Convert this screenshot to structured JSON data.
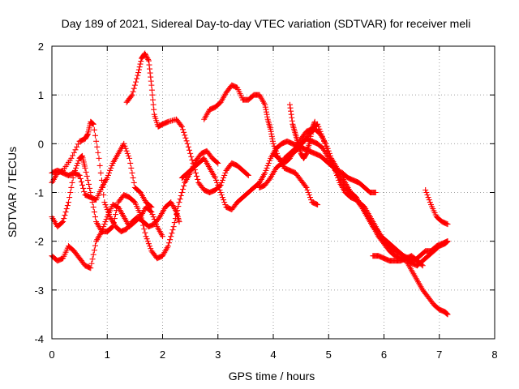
{
  "chart_data": {
    "type": "scatter",
    "title": "Day 189 of 2021, Sidereal Day-to-day VTEC variation (SDTVAR) for receiver meli",
    "xlabel": "GPS time / hours",
    "ylabel": "SDTVAR / TECUs",
    "xlim": [
      0,
      8
    ],
    "ylim": [
      -4,
      2
    ],
    "xticks": [
      "0",
      "1",
      "2",
      "3",
      "4",
      "5",
      "6",
      "7",
      "8"
    ],
    "yticks": [
      "-4",
      "-3",
      "-2",
      "-1",
      "0",
      "1",
      "2"
    ],
    "grid": true,
    "marker": "+",
    "color": "#ff0000",
    "series": [
      {
        "name": "trace-1",
        "x": [
          1.35,
          1.45,
          1.55,
          1.62,
          1.68,
          1.75,
          1.8,
          1.85,
          1.92,
          2.0,
          2.1,
          2.25,
          2.35,
          2.45,
          2.55,
          2.65,
          2.75,
          2.85,
          2.95,
          3.05,
          3.15,
          3.25,
          3.35,
          3.45,
          3.55
        ],
        "y": [
          0.85,
          1.0,
          1.4,
          1.75,
          1.85,
          1.7,
          1.2,
          0.6,
          0.35,
          0.4,
          0.45,
          0.5,
          0.35,
          0.0,
          -0.4,
          -0.8,
          -0.95,
          -1.0,
          -0.95,
          -0.85,
          -0.55,
          -0.4,
          -0.45,
          -0.55,
          -0.65
        ]
      },
      {
        "name": "trace-2",
        "x": [
          2.75,
          2.85,
          2.95,
          3.05,
          3.15,
          3.25,
          3.35,
          3.45,
          3.55,
          3.65,
          3.75,
          3.85,
          3.9,
          3.95,
          4.0,
          4.1,
          4.2,
          4.3,
          4.4,
          4.5,
          4.6,
          4.7,
          4.8
        ],
        "y": [
          0.5,
          0.7,
          0.75,
          0.85,
          1.05,
          1.2,
          1.15,
          0.9,
          0.9,
          1.0,
          1.0,
          0.8,
          0.5,
          0.3,
          0.0,
          -0.3,
          -0.5,
          -0.55,
          -0.6,
          -0.75,
          -0.9,
          -1.2,
          -1.25
        ]
      },
      {
        "name": "trace-3",
        "x": [
          0.0,
          0.1,
          0.2,
          0.35,
          0.5,
          0.6,
          0.65,
          0.7,
          0.75,
          0.85,
          0.95,
          1.05,
          1.15,
          1.25,
          1.35,
          1.45,
          1.55,
          1.65,
          1.75,
          1.85,
          1.95,
          2.05,
          2.15,
          2.25,
          2.3
        ],
        "y": [
          -0.8,
          -0.6,
          -0.55,
          -0.3,
          0.05,
          0.1,
          0.2,
          0.45,
          0.4,
          -0.3,
          -1.2,
          -1.5,
          -1.7,
          -1.8,
          -1.75,
          -1.6,
          -1.5,
          -1.6,
          -1.7,
          -1.65,
          -1.5,
          -1.3,
          -1.2,
          -1.4,
          -1.6
        ]
      },
      {
        "name": "trace-4",
        "x": [
          0.0,
          0.1,
          0.2,
          0.3,
          0.4,
          0.5,
          0.55,
          0.6,
          0.7,
          0.8,
          0.9,
          1.0,
          1.05,
          1.1,
          1.2,
          1.3,
          1.4,
          1.5,
          1.6,
          1.7,
          1.8,
          1.9,
          2.0,
          2.1,
          2.2,
          2.3,
          2.4,
          2.5,
          2.6,
          2.7,
          2.8,
          2.9,
          3.0
        ],
        "y": [
          -1.5,
          -1.7,
          -1.6,
          -1.2,
          -0.6,
          -0.3,
          -0.25,
          -0.5,
          -1.0,
          -1.6,
          -1.8,
          -1.8,
          -1.75,
          -1.7,
          -1.2,
          -1.05,
          -1.1,
          -1.2,
          -1.45,
          -1.9,
          -2.2,
          -2.35,
          -2.3,
          -2.1,
          -1.7,
          -1.2,
          -0.8,
          -0.6,
          -0.35,
          -0.2,
          -0.15,
          -0.3,
          -0.4
        ]
      },
      {
        "name": "trace-5",
        "x": [
          0.0,
          0.1,
          0.2,
          0.3,
          0.4,
          0.5,
          0.6,
          0.7,
          0.8,
          0.9,
          1.0,
          1.1,
          1.2,
          1.3,
          1.4,
          1.5,
          1.6,
          1.7,
          1.8,
          1.9,
          2.0
        ],
        "y": [
          -2.3,
          -2.4,
          -2.35,
          -2.1,
          -2.2,
          -2.35,
          -2.5,
          -2.55,
          -2.0,
          -1.8,
          -1.5,
          -1.25,
          -1.3,
          -1.5,
          -1.7,
          -1.6,
          -1.5,
          -1.3,
          -1.4,
          -1.7,
          -1.9
        ]
      },
      {
        "name": "trace-6",
        "x": [
          0.0,
          0.1,
          0.2,
          0.3,
          0.4,
          0.5,
          0.6,
          0.7,
          0.8,
          0.9,
          1.0,
          1.1,
          1.2,
          1.3,
          1.4,
          1.5,
          1.6,
          1.7,
          1.8
        ],
        "y": [
          -0.6,
          -0.55,
          -0.6,
          -0.65,
          -0.6,
          -0.65,
          -1.05,
          -1.1,
          -1.15,
          -0.9,
          -0.7,
          -0.4,
          -0.2,
          0.0,
          -0.3,
          -0.9,
          -1.0,
          -1.2,
          -1.3
        ]
      },
      {
        "name": "trace-7",
        "x": [
          2.35,
          2.45,
          2.55,
          2.65,
          2.75,
          2.85,
          2.95,
          3.05,
          3.15,
          3.25,
          3.35,
          3.45,
          3.55,
          3.65,
          3.75,
          3.85,
          3.95,
          4.05,
          4.15,
          4.25,
          4.35,
          4.45,
          4.55,
          4.65,
          4.75,
          4.85,
          4.95,
          5.05,
          5.15,
          5.25,
          5.35,
          5.45,
          5.55,
          5.65,
          5.75,
          5.85
        ],
        "y": [
          -0.7,
          -0.6,
          -0.5,
          -0.4,
          -0.3,
          -0.5,
          -0.7,
          -1.0,
          -1.3,
          -1.35,
          -1.2,
          -1.1,
          -1.0,
          -0.9,
          -0.8,
          -0.6,
          -0.3,
          -0.1,
          0.0,
          0.05,
          0.0,
          -0.05,
          -0.1,
          -0.15,
          -0.2,
          -0.25,
          -0.35,
          -0.45,
          -0.55,
          -0.6,
          -0.7,
          -0.75,
          -0.8,
          -0.9,
          -1.0,
          -1.0
        ]
      },
      {
        "name": "trace-8",
        "x": [
          3.75,
          3.85,
          3.95,
          4.05,
          4.15,
          4.25,
          4.35,
          4.45,
          4.55,
          4.65,
          4.75,
          4.85,
          4.95,
          5.05,
          5.15,
          5.25,
          5.35,
          5.45,
          5.55,
          5.65,
          5.75,
          5.85,
          5.95,
          6.05,
          6.15,
          6.25,
          6.35,
          6.45,
          6.55,
          6.65,
          6.75,
          6.85,
          6.95,
          7.05,
          7.15
        ],
        "y": [
          -0.9,
          -0.85,
          -0.7,
          -0.5,
          -0.4,
          -0.3,
          -0.2,
          -0.1,
          0.05,
          0.2,
          0.3,
          0.2,
          0.0,
          -0.3,
          -0.5,
          -0.7,
          -0.9,
          -1.1,
          -1.2,
          -1.3,
          -1.5,
          -1.7,
          -1.9,
          -2.0,
          -2.1,
          -2.2,
          -2.3,
          -2.35,
          -2.4,
          -2.3,
          -2.2,
          -2.2,
          -2.1,
          -2.05,
          -2.0
        ]
      },
      {
        "name": "trace-9",
        "x": [
          4.0,
          4.1,
          4.2,
          4.3,
          4.4,
          4.5,
          4.6,
          4.7,
          4.8,
          4.9,
          5.0,
          5.1,
          5.2,
          5.3,
          5.4,
          5.5,
          5.6,
          5.7,
          5.8,
          5.9,
          6.0,
          6.1,
          6.2,
          6.3,
          6.4,
          6.5,
          6.6,
          6.7,
          6.8,
          6.9,
          7.0,
          7.1,
          7.15
        ],
        "y": [
          -0.2,
          -0.3,
          -0.4,
          -0.3,
          -0.1,
          0.1,
          0.25,
          0.3,
          0.4,
          0.1,
          -0.2,
          -0.5,
          -0.8,
          -1.0,
          -1.1,
          -1.15,
          -1.3,
          -1.5,
          -1.7,
          -1.9,
          -2.05,
          -2.2,
          -2.3,
          -2.35,
          -2.4,
          -2.6,
          -2.8,
          -3.0,
          -3.15,
          -3.3,
          -3.4,
          -3.45,
          -3.5
        ]
      },
      {
        "name": "trace-10",
        "x": [
          4.2,
          4.3,
          4.4,
          4.5,
          4.6,
          4.7,
          4.8,
          4.9,
          5.0,
          5.1,
          5.2,
          5.3,
          5.4,
          5.5,
          5.6,
          5.7,
          5.8,
          5.9,
          6.0,
          6.1,
          6.2,
          6.3,
          6.4,
          6.5,
          6.6,
          6.7,
          6.8,
          6.9,
          7.0,
          7.1,
          7.15
        ],
        "y": [
          -0.3,
          -0.2,
          -0.1,
          0.0,
          0.1,
          0.05,
          0.0,
          -0.1,
          -0.3,
          -0.5,
          -0.7,
          -0.9,
          -1.0,
          -1.1,
          -1.3,
          -1.5,
          -1.7,
          -1.8,
          -2.0,
          -2.1,
          -2.2,
          -2.25,
          -2.35,
          -2.45,
          -2.5,
          -2.4,
          -2.3,
          -2.2,
          -2.1,
          -2.05,
          -2.0
        ]
      },
      {
        "name": "trace-11",
        "x": [
          4.3,
          4.35,
          4.4,
          4.45,
          4.5,
          4.55,
          4.6,
          4.65,
          4.7,
          4.75
        ],
        "y": [
          0.8,
          0.4,
          0.2,
          0.0,
          -0.2,
          -0.3,
          -0.2,
          0.0,
          0.3,
          0.45
        ]
      },
      {
        "name": "trace-12",
        "x": [
          5.8,
          5.9,
          6.0,
          6.1,
          6.2,
          6.3,
          6.4,
          6.5,
          6.6,
          6.7
        ],
        "y": [
          -2.3,
          -2.3,
          -2.35,
          -2.4,
          -2.4,
          -2.4,
          -2.35,
          -2.3,
          -2.4,
          -2.5
        ]
      },
      {
        "name": "trace-13",
        "x": [
          6.75,
          6.85,
          6.95,
          7.05,
          7.15
        ],
        "y": [
          -0.95,
          -1.25,
          -1.5,
          -1.6,
          -1.65
        ]
      }
    ]
  }
}
